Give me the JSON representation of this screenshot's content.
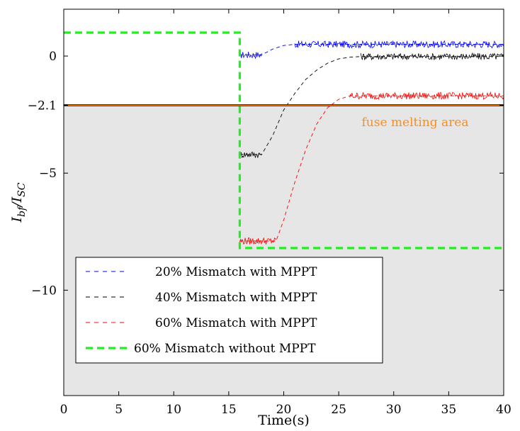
{
  "chart_data": {
    "type": "line",
    "xlabel": "Time(s)",
    "ylabel_main": "I",
    "ylabel_sub1": "bf",
    "ylabel_mid": "/I",
    "ylabel_sub2": "SC",
    "xlim": [
      0,
      40
    ],
    "ylim": [
      -14.5,
      2
    ],
    "x_ticks": [
      0,
      5,
      10,
      15,
      20,
      25,
      30,
      35,
      40
    ],
    "x_tick_labels": [
      "0",
      "5",
      "10",
      "15",
      "20",
      "25",
      "30",
      "35",
      "40"
    ],
    "y_ticks": [
      0,
      -2.1,
      -5,
      -10
    ],
    "y_tick_labels": [
      "0",
      "−2.1",
      "−5",
      "−10"
    ],
    "grid": false,
    "threshold": {
      "value": -2.1,
      "label": "fuse melting area",
      "color": "#ff8c1a",
      "fill": "#e6e6e6"
    },
    "legend_position": "bottom-left",
    "series": [
      {
        "name": "20% Mismatch with MPPT",
        "color": "#0000ff",
        "style": "dashed-thin",
        "points": [
          [
            16,
            0.05
          ],
          [
            18,
            0.05
          ],
          [
            19,
            0.3
          ],
          [
            20,
            0.45
          ],
          [
            21,
            0.5
          ],
          [
            40,
            0.5
          ]
        ],
        "noise": [
          [
            16,
            18,
            0.15
          ],
          [
            21,
            40,
            0.15
          ]
        ]
      },
      {
        "name": "40% Mismatch with MPPT",
        "color": "#000000",
        "style": "dashed-thin",
        "points": [
          [
            16,
            -4.2
          ],
          [
            18,
            -4.2
          ],
          [
            19,
            -3.4
          ],
          [
            20,
            -2.3
          ],
          [
            21,
            -1.6
          ],
          [
            22,
            -1.0
          ],
          [
            23,
            -0.6
          ],
          [
            24,
            -0.3
          ],
          [
            25,
            -0.12
          ],
          [
            26,
            -0.05
          ],
          [
            27,
            -0.02
          ],
          [
            40,
            -0.02
          ]
        ],
        "noise": [
          [
            16,
            18,
            0.15
          ],
          [
            27,
            40,
            0.15
          ]
        ]
      },
      {
        "name": "60% Mismatch with MPPT",
        "color": "#ff0000",
        "style": "dashed-thin",
        "points": [
          [
            16,
            -7.9
          ],
          [
            19.3,
            -7.9
          ],
          [
            20,
            -7.0
          ],
          [
            21,
            -5.4
          ],
          [
            22,
            -4.0
          ],
          [
            23,
            -2.9
          ],
          [
            24,
            -2.2
          ],
          [
            25,
            -1.85
          ],
          [
            26,
            -1.7
          ],
          [
            40,
            -1.7
          ]
        ],
        "noise": [
          [
            16,
            19.3,
            0.15
          ],
          [
            26,
            40,
            0.15
          ]
        ]
      },
      {
        "name": "60% Mismatch without MPPT",
        "color": "#22ee22",
        "style": "dashed-thick",
        "points": [
          [
            0,
            1.0
          ],
          [
            16,
            1.0
          ],
          [
            16,
            -8.2
          ],
          [
            40,
            -8.2
          ]
        ],
        "noise": []
      }
    ]
  }
}
